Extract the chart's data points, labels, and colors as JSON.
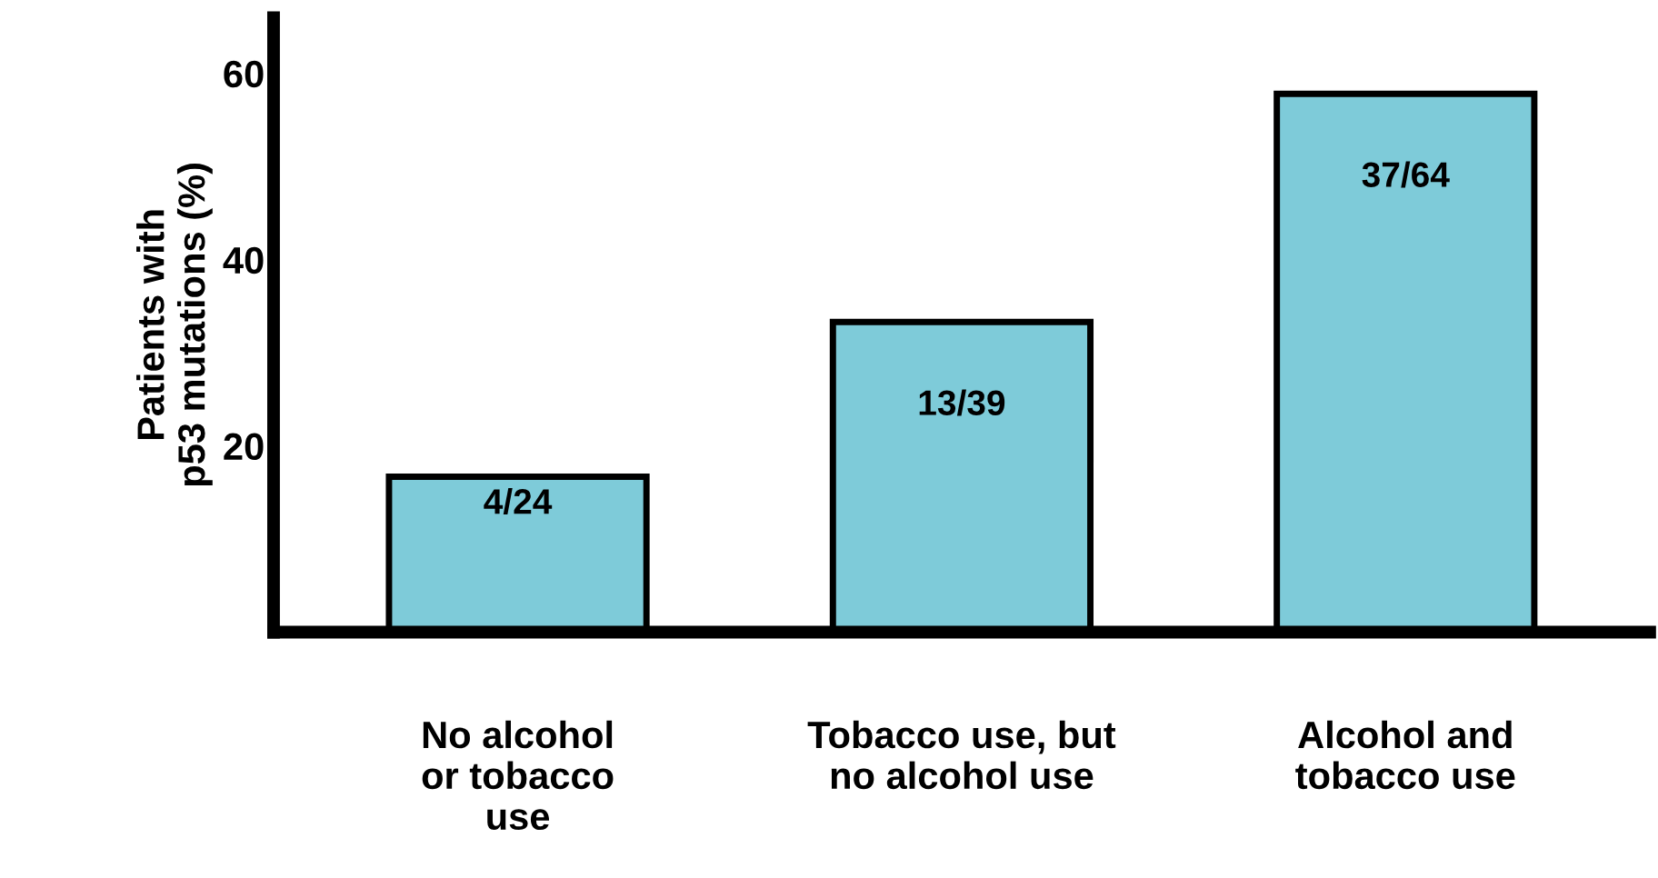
{
  "chart_data": {
    "type": "bar",
    "ylabel": "Patients with\np53 mutations (%)",
    "categories": [
      "No alcohol\nor tobacco\nuse",
      "Tobacco use, but\nno alcohol use",
      "Alcohol and\ntobacco use"
    ],
    "values": [
      16.7,
      33.3,
      57.8
    ],
    "value_labels": [
      "4/24",
      "13/39",
      "37/64"
    ],
    "color": "#7ecbd9",
    "ylim": [
      0,
      66
    ],
    "yticks": [
      20,
      40,
      60
    ],
    "grid": false,
    "legend": false
  }
}
